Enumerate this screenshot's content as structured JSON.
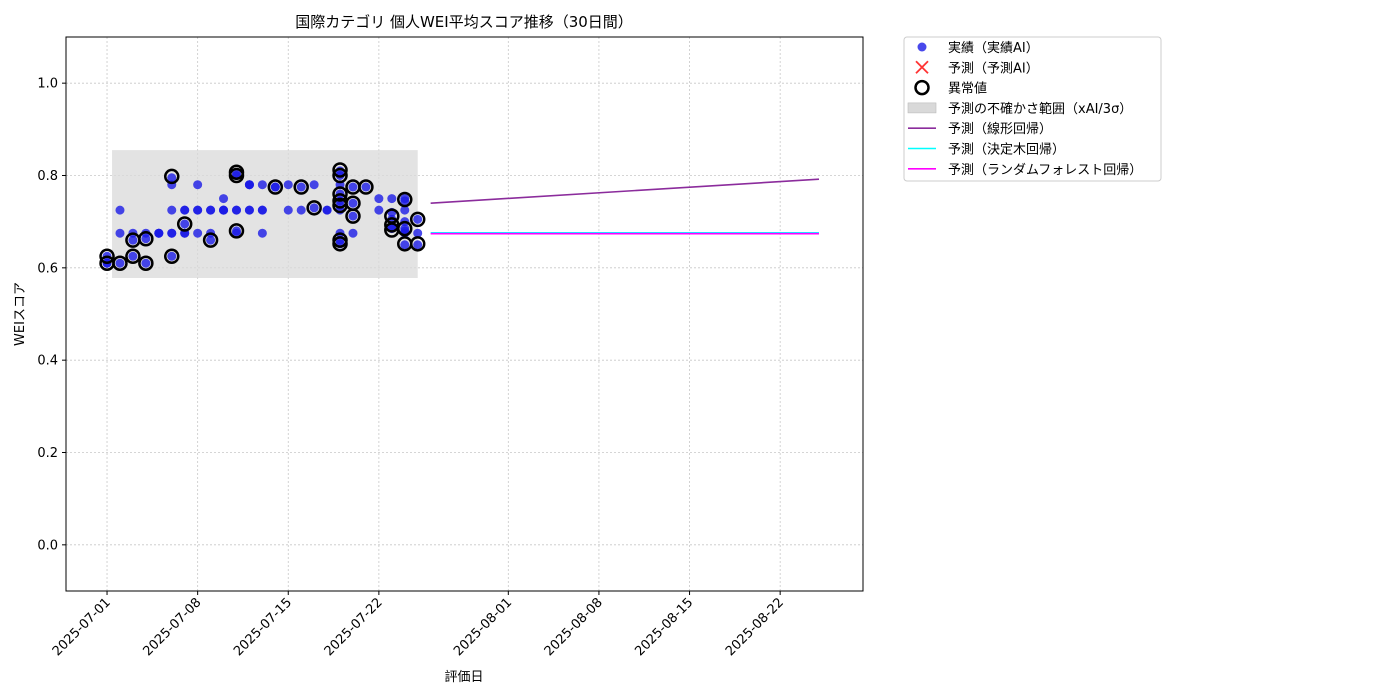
{
  "chart_data": {
    "type": "scatter",
    "title": "国際カテゴリ 個人WEI平均スコア推移（30日間）",
    "xlabel": "評価日",
    "ylabel": "WEIスコア",
    "xlim": [
      "2025-06-28",
      "2025-08-28"
    ],
    "ylim": [
      -0.1,
      1.1
    ],
    "yticks": [
      "0.0",
      "0.2",
      "0.4",
      "0.6",
      "0.8",
      "1.0"
    ],
    "xticks": [
      "2025-07-01",
      "2025-07-08",
      "2025-07-15",
      "2025-07-22",
      "2025-08-01",
      "2025-08-08",
      "2025-08-15",
      "2025-08-22"
    ],
    "grid": true,
    "legend_position": "outside right",
    "colors": {
      "actual": "#1a1ae6",
      "predicted": "#ff3333",
      "anomaly": "#000000",
      "band": "#d9d9d9",
      "linear": "#8b2c9c",
      "tree": "#00ffff",
      "forest": "#ff00ff"
    },
    "legend": [
      {
        "key": "actual",
        "label": "実績（実績AI）"
      },
      {
        "key": "predicted",
        "label": "予測（予測AI）"
      },
      {
        "key": "anomaly",
        "label": "異常値"
      },
      {
        "key": "band",
        "label": "予測の不確かさ範囲（xAI/3σ）"
      },
      {
        "key": "linear",
        "label": "予測（線形回帰）"
      },
      {
        "key": "tree",
        "label": "予測（決定木回帰）"
      },
      {
        "key": "forest",
        "label": "予測（ランダムフォレスト回帰）"
      }
    ],
    "uncertainty_band": {
      "x": [
        "2025-07-01",
        "2025-07-25"
      ],
      "y": [
        0.578,
        0.855
      ]
    },
    "actual_points": [
      [
        "2025-07-01",
        0.61
      ],
      [
        "2025-07-01",
        0.625
      ],
      [
        "2025-07-01",
        0.61
      ],
      [
        "2025-07-02",
        0.61
      ],
      [
        "2025-07-02",
        0.725
      ],
      [
        "2025-07-02",
        0.675
      ],
      [
        "2025-07-03",
        0.66
      ],
      [
        "2025-07-03",
        0.675
      ],
      [
        "2025-07-03",
        0.625
      ],
      [
        "2025-07-04",
        0.675
      ],
      [
        "2025-07-04",
        0.663
      ],
      [
        "2025-07-04",
        0.61
      ],
      [
        "2025-07-05",
        0.675
      ],
      [
        "2025-07-05",
        0.675
      ],
      [
        "2025-07-05",
        0.675
      ],
      [
        "2025-07-06",
        0.675
      ],
      [
        "2025-07-06",
        0.625
      ],
      [
        "2025-07-06",
        0.675
      ],
      [
        "2025-07-06",
        0.725
      ],
      [
        "2025-07-06",
        0.78
      ],
      [
        "2025-07-06",
        0.795
      ],
      [
        "2025-07-07",
        0.725
      ],
      [
        "2025-07-07",
        0.695
      ],
      [
        "2025-07-07",
        0.675
      ],
      [
        "2025-07-07",
        0.725
      ],
      [
        "2025-07-07",
        0.675
      ],
      [
        "2025-07-08",
        0.725
      ],
      [
        "2025-07-08",
        0.675
      ],
      [
        "2025-07-08",
        0.78
      ],
      [
        "2025-07-08",
        0.725
      ],
      [
        "2025-07-09",
        0.725
      ],
      [
        "2025-07-09",
        0.66
      ],
      [
        "2025-07-09",
        0.675
      ],
      [
        "2025-07-09",
        0.725
      ],
      [
        "2025-07-10",
        0.725
      ],
      [
        "2025-07-10",
        0.75
      ],
      [
        "2025-07-10",
        0.725
      ],
      [
        "2025-07-10",
        0.725
      ],
      [
        "2025-07-11",
        0.725
      ],
      [
        "2025-07-11",
        0.675
      ],
      [
        "2025-07-11",
        0.725
      ],
      [
        "2025-07-11",
        0.68
      ],
      [
        "2025-07-11",
        0.8
      ],
      [
        "2025-07-11",
        0.805
      ],
      [
        "2025-07-12",
        0.78
      ],
      [
        "2025-07-12",
        0.725
      ],
      [
        "2025-07-12",
        0.78
      ],
      [
        "2025-07-12",
        0.725
      ],
      [
        "2025-07-12",
        0.78
      ],
      [
        "2025-07-13",
        0.78
      ],
      [
        "2025-07-13",
        0.725
      ],
      [
        "2025-07-13",
        0.725
      ],
      [
        "2025-07-13",
        0.675
      ],
      [
        "2025-07-14",
        0.775
      ],
      [
        "2025-07-14",
        0.775
      ],
      [
        "2025-07-15",
        0.78
      ],
      [
        "2025-07-15",
        0.725
      ],
      [
        "2025-07-16",
        0.775
      ],
      [
        "2025-07-16",
        0.725
      ],
      [
        "2025-07-17",
        0.78
      ],
      [
        "2025-07-17",
        0.73
      ],
      [
        "2025-07-18",
        0.725
      ],
      [
        "2025-07-18",
        0.725
      ],
      [
        "2025-07-19",
        0.81
      ],
      [
        "2025-07-19",
        0.8
      ],
      [
        "2025-07-19",
        0.78
      ],
      [
        "2025-07-19",
        0.76
      ],
      [
        "2025-07-19",
        0.745
      ],
      [
        "2025-07-19",
        0.735
      ],
      [
        "2025-07-19",
        0.725
      ],
      [
        "2025-07-19",
        0.675
      ],
      [
        "2025-07-19",
        0.66
      ],
      [
        "2025-07-19",
        0.652
      ],
      [
        "2025-07-20",
        0.775
      ],
      [
        "2025-07-20",
        0.74
      ],
      [
        "2025-07-20",
        0.712
      ],
      [
        "2025-07-20",
        0.675
      ],
      [
        "2025-07-21",
        0.775
      ],
      [
        "2025-07-22",
        0.75
      ],
      [
        "2025-07-22",
        0.725
      ],
      [
        "2025-07-23",
        0.75
      ],
      [
        "2025-07-23",
        0.72
      ],
      [
        "2025-07-23",
        0.705
      ],
      [
        "2025-07-23",
        0.69
      ],
      [
        "2025-07-23",
        0.685
      ],
      [
        "2025-07-24",
        0.75
      ],
      [
        "2025-07-24",
        0.745
      ],
      [
        "2025-07-24",
        0.725
      ],
      [
        "2025-07-24",
        0.7
      ],
      [
        "2025-07-24",
        0.685
      ],
      [
        "2025-07-24",
        0.68
      ],
      [
        "2025-07-24",
        0.675
      ],
      [
        "2025-07-24",
        0.65
      ],
      [
        "2025-07-25",
        0.705
      ],
      [
        "2025-07-25",
        0.675
      ],
      [
        "2025-07-25",
        0.65
      ]
    ],
    "anomaly_points": [
      [
        "2025-07-01",
        0.625
      ],
      [
        "2025-07-01",
        0.61
      ],
      [
        "2025-07-02",
        0.61
      ],
      [
        "2025-07-03",
        0.66
      ],
      [
        "2025-07-03",
        0.625
      ],
      [
        "2025-07-04",
        0.663
      ],
      [
        "2025-07-04",
        0.61
      ],
      [
        "2025-07-06",
        0.625
      ],
      [
        "2025-07-06",
        0.798
      ],
      [
        "2025-07-07",
        0.695
      ],
      [
        "2025-07-09",
        0.66
      ],
      [
        "2025-07-11",
        0.68
      ],
      [
        "2025-07-11",
        0.8
      ],
      [
        "2025-07-11",
        0.807
      ],
      [
        "2025-07-14",
        0.775
      ],
      [
        "2025-07-16",
        0.775
      ],
      [
        "2025-07-17",
        0.73
      ],
      [
        "2025-07-19",
        0.812
      ],
      [
        "2025-07-19",
        0.8
      ],
      [
        "2025-07-19",
        0.76
      ],
      [
        "2025-07-19",
        0.745
      ],
      [
        "2025-07-19",
        0.735
      ],
      [
        "2025-07-19",
        0.66
      ],
      [
        "2025-07-19",
        0.652
      ],
      [
        "2025-07-20",
        0.775
      ],
      [
        "2025-07-20",
        0.74
      ],
      [
        "2025-07-20",
        0.712
      ],
      [
        "2025-07-21",
        0.775
      ],
      [
        "2025-07-23",
        0.712
      ],
      [
        "2025-07-23",
        0.693
      ],
      [
        "2025-07-23",
        0.682
      ],
      [
        "2025-07-24",
        0.748
      ],
      [
        "2025-07-24",
        0.685
      ],
      [
        "2025-07-24",
        0.652
      ],
      [
        "2025-07-25",
        0.705
      ],
      [
        "2025-07-25",
        0.652
      ]
    ],
    "series": [
      {
        "name": "予測（線形回帰）",
        "key": "linear",
        "x": [
          "2025-07-26",
          "2025-08-25"
        ],
        "y": [
          0.74,
          0.792
        ]
      },
      {
        "name": "予測（決定木回帰）",
        "key": "tree",
        "x": [
          "2025-07-26",
          "2025-08-25"
        ],
        "y": [
          0.676,
          0.676
        ]
      },
      {
        "name": "予測（ランダムフォレスト回帰）",
        "key": "forest",
        "x": [
          "2025-07-26",
          "2025-08-25"
        ],
        "y": [
          0.674,
          0.674
        ]
      }
    ]
  }
}
